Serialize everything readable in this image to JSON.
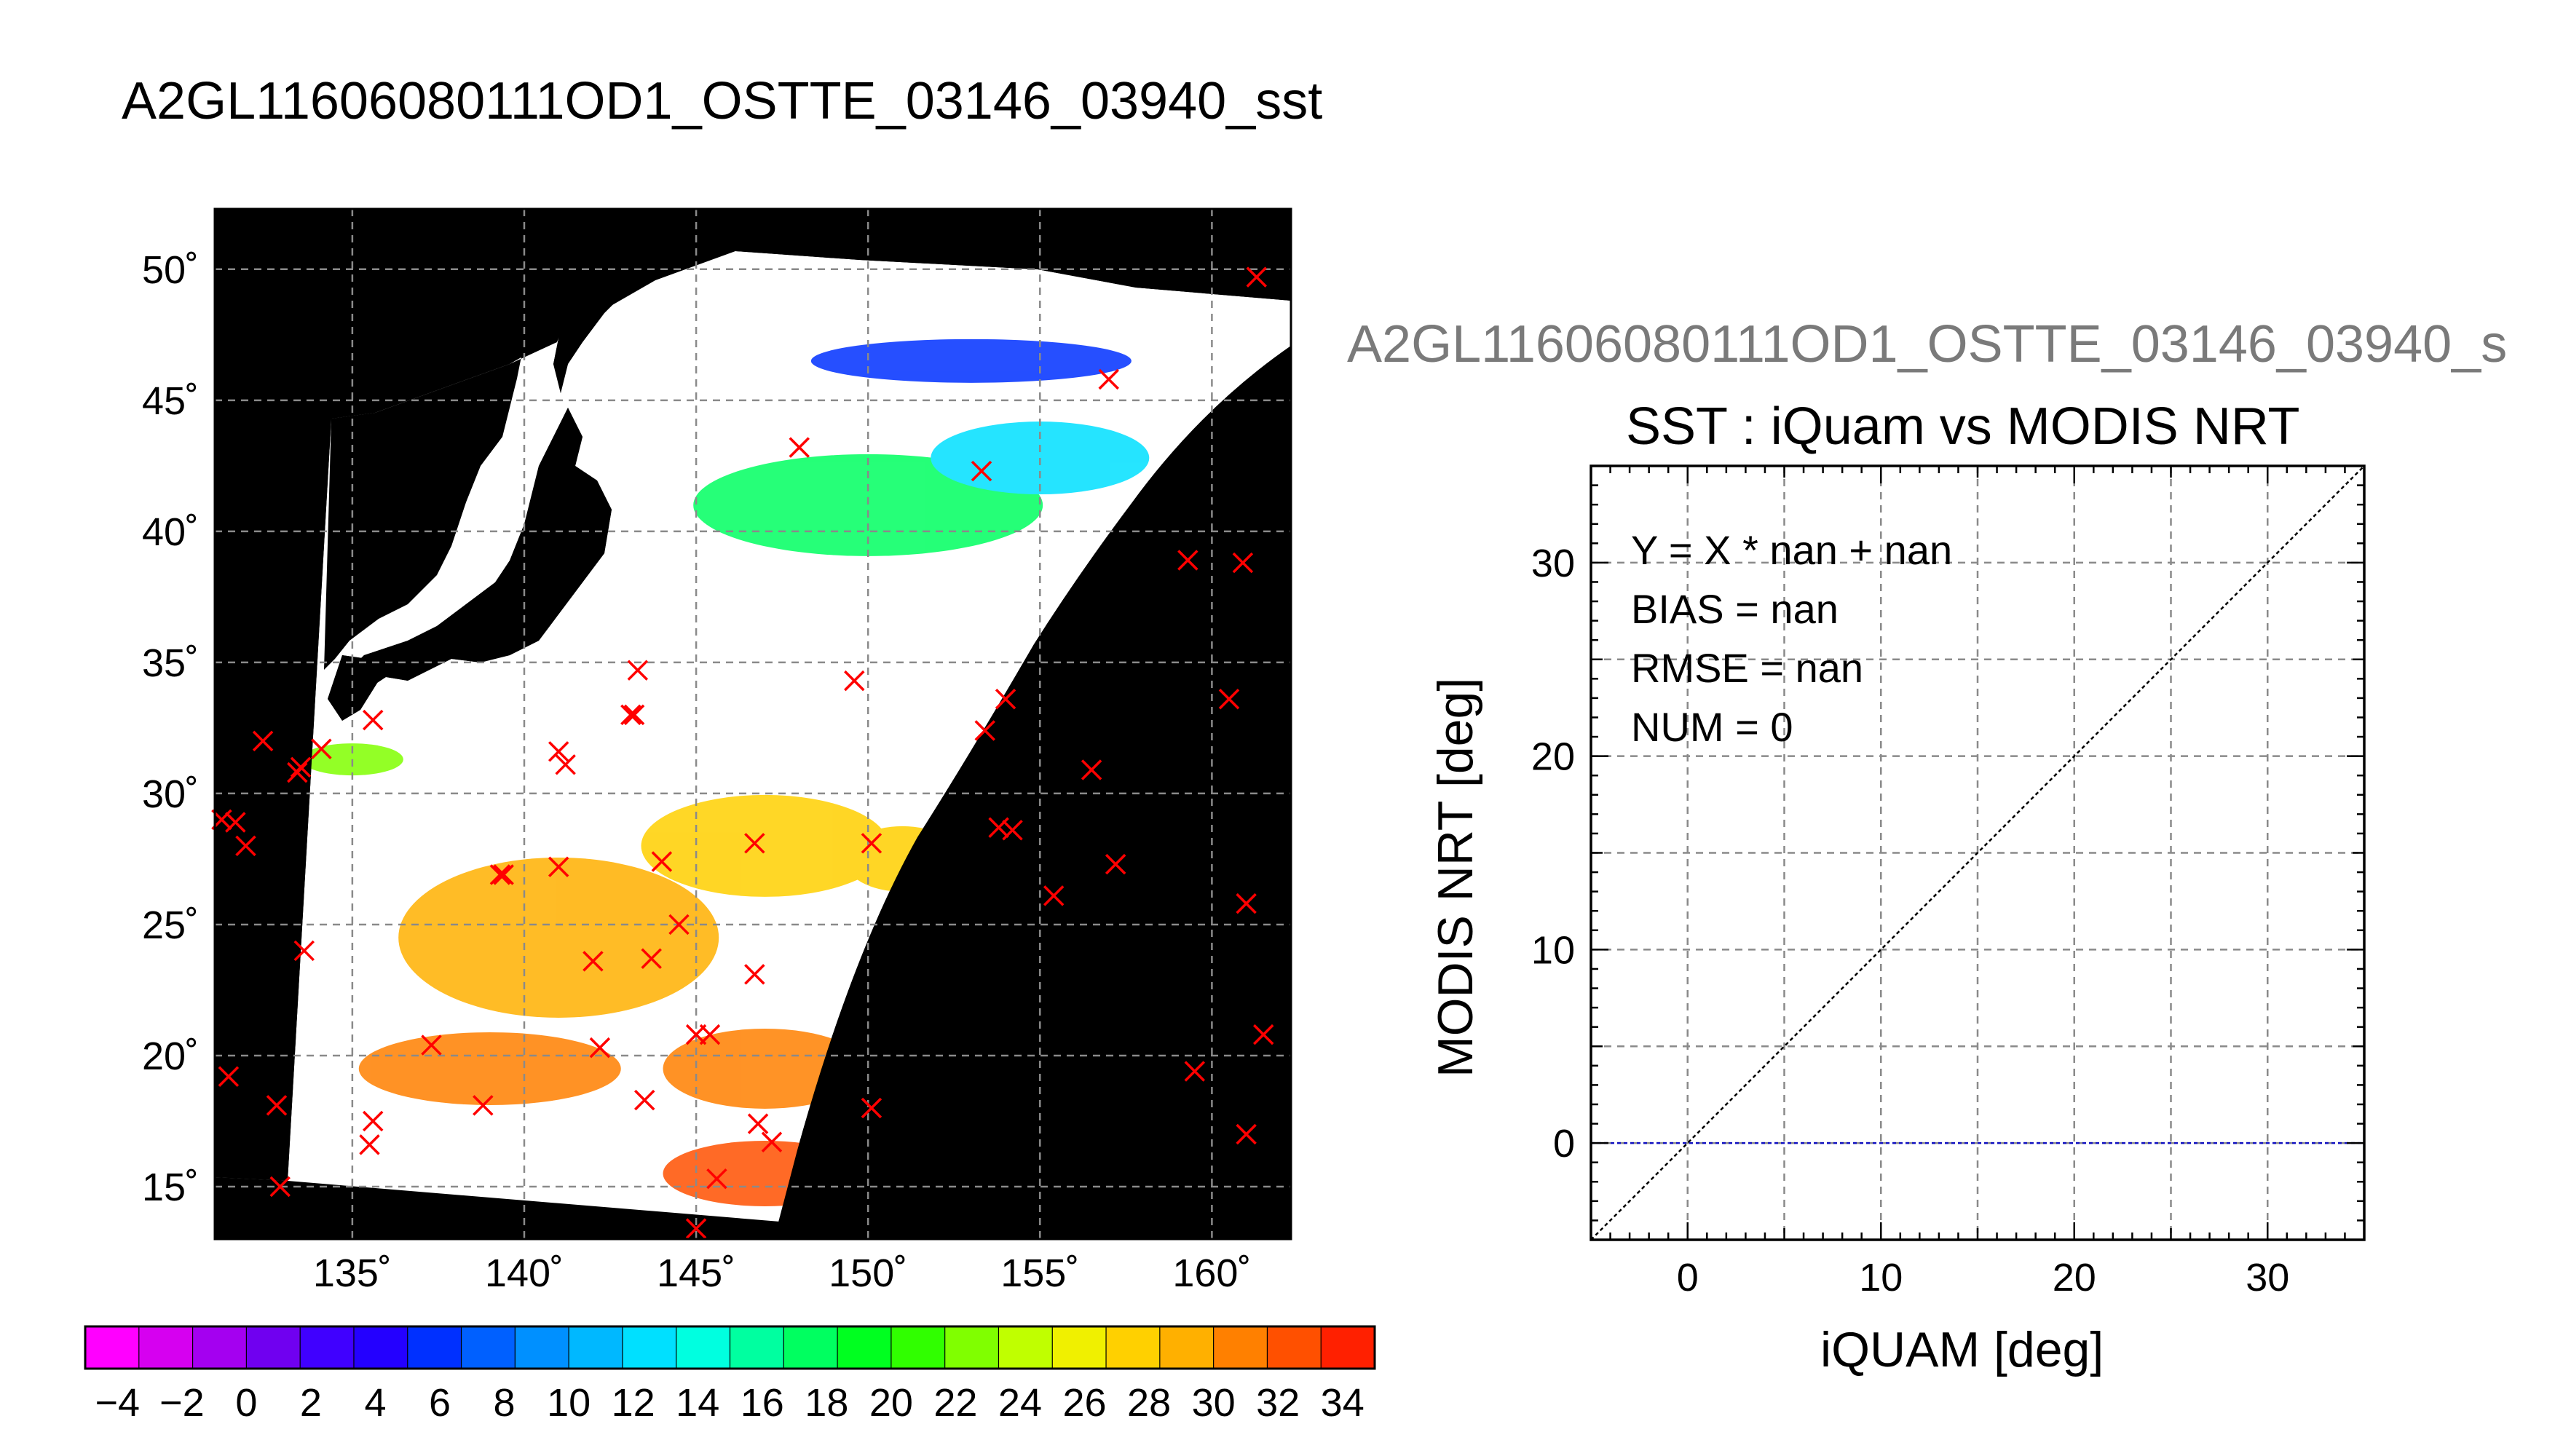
{
  "main_title": "A2GL11606080111OD1_OSTTE_03146_03940_sst",
  "chart_data": [
    {
      "type": "heatmap",
      "title": "A2GL11606080111OD1_OSTTE_03146_03940_sst",
      "x_ticks": [
        "135˚",
        "140˚",
        "145˚",
        "150˚",
        "155˚",
        "160˚"
      ],
      "y_ticks": [
        "50˚",
        "45˚",
        "40˚",
        "35˚",
        "30˚",
        "25˚",
        "20˚",
        "15˚"
      ],
      "xlim": [
        131,
        162.3
      ],
      "ylim": [
        13,
        52.3
      ],
      "grid": true,
      "colorbar": {
        "ticks": [
          "−4",
          "−2",
          "0",
          "2",
          "4",
          "6",
          "8",
          "10",
          "12",
          "14",
          "16",
          "18",
          "20",
          "22",
          "24",
          "26",
          "28",
          "30",
          "32",
          "34"
        ],
        "range": [
          -5,
          35
        ],
        "colors": [
          "#ff00ff",
          "#d600f0",
          "#a400f0",
          "#7000f0",
          "#4000ff",
          "#2400ff",
          "#0030ff",
          "#0060ff",
          "#0090ff",
          "#00b8ff",
          "#00e0ff",
          "#00ffe0",
          "#00ffa0",
          "#00ff60",
          "#00ff20",
          "#30ff00",
          "#80ff00",
          "#c0ff00",
          "#f0f000",
          "#ffd000",
          "#ffb000",
          "#ff8000",
          "#ff5000",
          "#ff2000"
        ]
      },
      "sst_regions": [
        {
          "lon": 150,
          "lat": 41.0,
          "value": 18
        },
        {
          "lon": 155,
          "lat": 42.8,
          "value": 13
        },
        {
          "lon": 153,
          "lat": 46.5,
          "value": 5
        },
        {
          "lon": 135,
          "lat": 31.3,
          "value": 23
        },
        {
          "lon": 147,
          "lat": 28.0,
          "value": 27
        },
        {
          "lon": 151,
          "lat": 27.5,
          "value": 28
        },
        {
          "lon": 141,
          "lat": 24.5,
          "value": 29
        },
        {
          "lon": 147,
          "lat": 19.5,
          "value": 31
        },
        {
          "lon": 147,
          "lat": 15.5,
          "value": 32
        },
        {
          "lon": 139,
          "lat": 19.5,
          "value": 31
        }
      ],
      "markers": [
        [
          161.3,
          49.7
        ],
        [
          157.0,
          45.8
        ],
        [
          153.3,
          42.3
        ],
        [
          148.0,
          43.2
        ],
        [
          159.3,
          38.9
        ],
        [
          160.9,
          38.8
        ],
        [
          143.3,
          34.7
        ],
        [
          149.6,
          34.3
        ],
        [
          143.2,
          33.0
        ],
        [
          143.1,
          33.0
        ],
        [
          135.6,
          32.8
        ],
        [
          132.4,
          32.0
        ],
        [
          134.1,
          31.7
        ],
        [
          141.0,
          31.6
        ],
        [
          141.2,
          31.1
        ],
        [
          133.5,
          31.0
        ],
        [
          133.4,
          30.8
        ],
        [
          131.2,
          29.0
        ],
        [
          131.6,
          28.9
        ],
        [
          131.9,
          28.0
        ],
        [
          153.4,
          32.4
        ],
        [
          154.0,
          33.6
        ],
        [
          156.5,
          30.9
        ],
        [
          160.5,
          33.6
        ],
        [
          153.8,
          28.7
        ],
        [
          154.2,
          28.6
        ],
        [
          157.2,
          27.3
        ],
        [
          161.0,
          25.8
        ],
        [
          155.4,
          26.1
        ],
        [
          150.1,
          28.1
        ],
        [
          146.7,
          28.1
        ],
        [
          144.0,
          27.4
        ],
        [
          141.0,
          27.2
        ],
        [
          139.3,
          26.9
        ],
        [
          139.4,
          26.9
        ],
        [
          133.6,
          24.0
        ],
        [
          144.5,
          25.0
        ],
        [
          143.7,
          23.7
        ],
        [
          142.0,
          23.6
        ],
        [
          146.7,
          23.1
        ],
        [
          145.0,
          20.8
        ],
        [
          145.4,
          20.8
        ],
        [
          142.2,
          20.3
        ],
        [
          137.3,
          20.4
        ],
        [
          131.4,
          19.2
        ],
        [
          132.8,
          18.1
        ],
        [
          135.6,
          17.5
        ],
        [
          135.5,
          16.6
        ],
        [
          138.8,
          18.1
        ],
        [
          143.5,
          18.3
        ],
        [
          146.8,
          17.4
        ],
        [
          147.2,
          16.7
        ],
        [
          150.1,
          18.0
        ],
        [
          145.6,
          15.3
        ],
        [
          132.9,
          15.0
        ],
        [
          145.0,
          13.4
        ],
        [
          159.5,
          19.4
        ],
        [
          161.5,
          20.8
        ],
        [
          161.0,
          17.0
        ]
      ]
    },
    {
      "type": "scatter",
      "title": "SST : iQuam vs MODIS NRT",
      "ghost_title": "A2GL11606080111OD1_OSTTE_03146_03940_s",
      "xlabel": "iQUAM [deg]",
      "ylabel": "MODIS NRT [deg]",
      "xlim": [
        -5,
        35
      ],
      "ylim": [
        -5,
        35
      ],
      "x_ticks": [
        0,
        10,
        20,
        30
      ],
      "y_ticks": [
        0,
        10,
        20,
        30
      ],
      "grid": true,
      "points": [],
      "one_to_one_line": {
        "from": [
          -5,
          -5
        ],
        "to": [
          35,
          35
        ]
      },
      "fit_line_y": 0,
      "stats": [
        "Y = X * nan + nan",
        "BIAS = nan",
        "RMSE = nan",
        "NUM = 0"
      ]
    }
  ]
}
